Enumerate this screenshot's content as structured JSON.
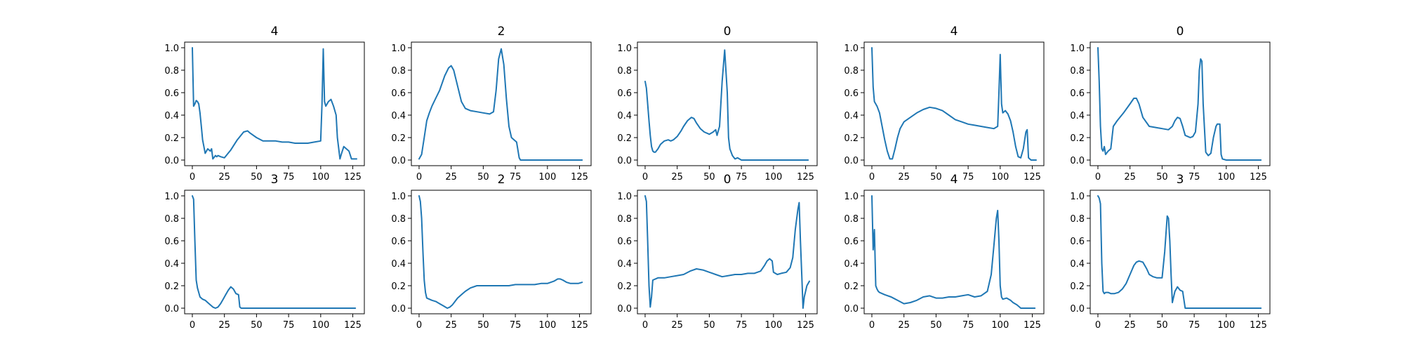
{
  "chart_data": [
    {
      "type": "line",
      "title": "4",
      "xlim": [
        -6,
        134
      ],
      "ylim": [
        -0.05,
        1.05
      ],
      "xticks": [
        0,
        25,
        50,
        75,
        100,
        125
      ],
      "yticks": [
        0.0,
        0.2,
        0.4,
        0.6,
        0.8,
        1.0
      ],
      "series": [
        {
          "x": [
            0,
            1,
            2,
            3,
            4,
            5,
            6,
            7,
            8,
            10,
            12,
            14,
            15,
            16,
            18,
            19,
            20,
            22,
            25,
            30,
            35,
            40,
            43,
            45,
            50,
            55,
            60,
            65,
            70,
            75,
            80,
            85,
            90,
            95,
            100,
            101,
            102,
            103,
            104,
            106,
            108,
            110,
            112,
            113,
            115,
            116,
            118,
            120,
            122,
            124,
            128
          ],
          "y": [
            1.0,
            0.48,
            0.5,
            0.53,
            0.52,
            0.5,
            0.42,
            0.3,
            0.18,
            0.06,
            0.1,
            0.08,
            0.1,
            0.01,
            0.04,
            0.03,
            0.04,
            0.03,
            0.02,
            0.09,
            0.18,
            0.25,
            0.26,
            0.24,
            0.2,
            0.17,
            0.17,
            0.17,
            0.16,
            0.16,
            0.15,
            0.15,
            0.15,
            0.16,
            0.17,
            0.5,
            0.99,
            0.52,
            0.48,
            0.52,
            0.54,
            0.48,
            0.4,
            0.2,
            0.01,
            0.05,
            0.12,
            0.1,
            0.08,
            0.01,
            0.01
          ]
        }
      ]
    },
    {
      "type": "line",
      "title": "2",
      "xlim": [
        -6,
        134
      ],
      "ylim": [
        -0.05,
        1.05
      ],
      "xticks": [
        0,
        25,
        50,
        75,
        100,
        125
      ],
      "yticks": [
        0.0,
        0.2,
        0.4,
        0.6,
        0.8,
        1.0
      ],
      "series": [
        {
          "x": [
            0,
            2,
            4,
            6,
            8,
            10,
            13,
            16,
            20,
            23,
            25,
            27,
            30,
            33,
            36,
            40,
            45,
            50,
            55,
            58,
            60,
            62,
            64,
            66,
            68,
            70,
            72,
            74,
            76,
            78,
            79,
            80,
            100,
            127
          ],
          "y": [
            0.01,
            0.05,
            0.2,
            0.35,
            0.42,
            0.48,
            0.55,
            0.62,
            0.75,
            0.82,
            0.84,
            0.8,
            0.66,
            0.52,
            0.46,
            0.44,
            0.43,
            0.42,
            0.41,
            0.43,
            0.62,
            0.9,
            0.99,
            0.85,
            0.55,
            0.3,
            0.2,
            0.18,
            0.16,
            0.02,
            0.0,
            0.0,
            0.0,
            0.0
          ]
        }
      ]
    },
    {
      "type": "line",
      "title": "0",
      "xlim": [
        -6,
        134
      ],
      "ylim": [
        -0.05,
        1.05
      ],
      "xticks": [
        0,
        25,
        50,
        75,
        100,
        125
      ],
      "yticks": [
        0.0,
        0.2,
        0.4,
        0.6,
        0.8,
        1.0
      ],
      "series": [
        {
          "x": [
            0,
            1,
            2,
            3,
            4,
            5,
            6,
            7,
            8,
            10,
            12,
            15,
            18,
            20,
            22,
            25,
            28,
            30,
            33,
            36,
            38,
            40,
            43,
            46,
            50,
            53,
            55,
            56,
            58,
            60,
            62,
            64,
            65,
            66,
            68,
            70,
            72,
            75,
            80,
            127
          ],
          "y": [
            0.7,
            0.64,
            0.5,
            0.35,
            0.22,
            0.12,
            0.08,
            0.07,
            0.07,
            0.1,
            0.14,
            0.17,
            0.18,
            0.17,
            0.18,
            0.21,
            0.26,
            0.3,
            0.35,
            0.38,
            0.37,
            0.33,
            0.28,
            0.25,
            0.23,
            0.25,
            0.27,
            0.22,
            0.3,
            0.7,
            0.98,
            0.6,
            0.2,
            0.1,
            0.04,
            0.01,
            0.02,
            0.0,
            0.0,
            0.0
          ]
        }
      ]
    },
    {
      "type": "line",
      "title": "4",
      "xlim": [
        -6,
        134
      ],
      "ylim": [
        -0.05,
        1.05
      ],
      "xticks": [
        0,
        25,
        50,
        75,
        100,
        125
      ],
      "yticks": [
        0.0,
        0.2,
        0.4,
        0.6,
        0.8,
        1.0
      ],
      "series": [
        {
          "x": [
            0,
            1,
            2,
            4,
            6,
            8,
            10,
            12,
            14,
            16,
            18,
            20,
            22,
            25,
            30,
            35,
            40,
            45,
            50,
            55,
            60,
            65,
            70,
            75,
            80,
            85,
            90,
            95,
            98,
            99,
            100,
            101,
            102,
            104,
            106,
            108,
            110,
            112,
            114,
            116,
            118,
            120,
            121,
            122,
            124,
            128
          ],
          "y": [
            1.0,
            0.65,
            0.52,
            0.48,
            0.42,
            0.3,
            0.18,
            0.08,
            0.01,
            0.01,
            0.1,
            0.2,
            0.28,
            0.34,
            0.38,
            0.42,
            0.45,
            0.47,
            0.46,
            0.44,
            0.4,
            0.36,
            0.34,
            0.32,
            0.31,
            0.3,
            0.29,
            0.28,
            0.3,
            0.6,
            0.94,
            0.5,
            0.42,
            0.44,
            0.41,
            0.35,
            0.25,
            0.12,
            0.03,
            0.02,
            0.1,
            0.25,
            0.27,
            0.02,
            0.0,
            0.0
          ]
        }
      ]
    },
    {
      "type": "line",
      "title": "0",
      "xlim": [
        -6,
        134
      ],
      "ylim": [
        -0.05,
        1.05
      ],
      "xticks": [
        0,
        25,
        50,
        75,
        100,
        125
      ],
      "yticks": [
        0.0,
        0.2,
        0.4,
        0.6,
        0.8,
        1.0
      ],
      "series": [
        {
          "x": [
            0,
            1,
            2,
            3,
            4,
            5,
            6,
            8,
            10,
            12,
            15,
            20,
            25,
            28,
            30,
            32,
            35,
            40,
            45,
            50,
            55,
            58,
            60,
            62,
            64,
            66,
            68,
            70,
            72,
            74,
            76,
            78,
            79,
            80,
            81,
            82,
            84,
            86,
            88,
            90,
            92,
            93,
            94,
            95,
            96,
            97,
            100,
            127
          ],
          "y": [
            1.0,
            0.7,
            0.3,
            0.1,
            0.08,
            0.12,
            0.05,
            0.08,
            0.1,
            0.3,
            0.35,
            0.42,
            0.5,
            0.55,
            0.55,
            0.5,
            0.38,
            0.3,
            0.29,
            0.28,
            0.27,
            0.3,
            0.35,
            0.38,
            0.37,
            0.3,
            0.22,
            0.21,
            0.2,
            0.21,
            0.25,
            0.5,
            0.8,
            0.9,
            0.88,
            0.5,
            0.07,
            0.04,
            0.06,
            0.2,
            0.3,
            0.32,
            0.32,
            0.32,
            0.05,
            0.01,
            0.0,
            0.0
          ]
        }
      ]
    },
    {
      "type": "line",
      "title": "3",
      "xlim": [
        -6,
        134
      ],
      "ylim": [
        -0.05,
        1.05
      ],
      "xticks": [
        0,
        25,
        50,
        75,
        100,
        125
      ],
      "yticks": [
        0.0,
        0.2,
        0.4,
        0.6,
        0.8,
        1.0
      ],
      "series": [
        {
          "x": [
            0,
            1,
            2,
            3,
            4,
            5,
            6,
            8,
            10,
            12,
            14,
            16,
            18,
            20,
            22,
            24,
            26,
            28,
            30,
            32,
            34,
            36,
            37,
            38,
            40,
            60,
            80,
            100,
            127
          ],
          "y": [
            1.0,
            0.97,
            0.6,
            0.25,
            0.18,
            0.14,
            0.1,
            0.08,
            0.07,
            0.05,
            0.03,
            0.01,
            0.0,
            0.01,
            0.04,
            0.08,
            0.12,
            0.16,
            0.19,
            0.17,
            0.13,
            0.12,
            0.01,
            0.0,
            0.0,
            0.0,
            0.0,
            0.0,
            0.0
          ]
        }
      ]
    },
    {
      "type": "line",
      "title": "2",
      "xlim": [
        -6,
        134
      ],
      "ylim": [
        -0.05,
        1.05
      ],
      "xticks": [
        0,
        25,
        50,
        75,
        100,
        125
      ],
      "yticks": [
        0.0,
        0.2,
        0.4,
        0.6,
        0.8,
        1.0
      ],
      "series": [
        {
          "x": [
            0,
            1,
            2,
            3,
            4,
            5,
            6,
            8,
            10,
            13,
            16,
            19,
            22,
            24,
            26,
            28,
            30,
            33,
            36,
            40,
            45,
            50,
            55,
            60,
            65,
            70,
            75,
            80,
            85,
            90,
            95,
            100,
            105,
            108,
            110,
            112,
            115,
            118,
            120,
            124,
            127
          ],
          "y": [
            1.0,
            0.95,
            0.8,
            0.5,
            0.25,
            0.14,
            0.09,
            0.08,
            0.07,
            0.06,
            0.04,
            0.02,
            0.0,
            0.01,
            0.03,
            0.06,
            0.09,
            0.12,
            0.15,
            0.18,
            0.2,
            0.2,
            0.2,
            0.2,
            0.2,
            0.2,
            0.21,
            0.21,
            0.21,
            0.21,
            0.22,
            0.22,
            0.24,
            0.26,
            0.26,
            0.25,
            0.23,
            0.22,
            0.22,
            0.22,
            0.23
          ]
        }
      ]
    },
    {
      "type": "line",
      "title": "0",
      "xlim": [
        -6,
        134
      ],
      "ylim": [
        -0.05,
        1.05
      ],
      "xticks": [
        0,
        25,
        50,
        75,
        100,
        125
      ],
      "yticks": [
        0.0,
        0.2,
        0.4,
        0.6,
        0.8,
        1.0
      ],
      "series": [
        {
          "x": [
            0,
            1,
            2,
            3,
            4,
            5,
            6,
            8,
            10,
            15,
            20,
            25,
            30,
            35,
            40,
            45,
            50,
            55,
            60,
            65,
            70,
            75,
            80,
            85,
            90,
            93,
            95,
            97,
            99,
            100,
            103,
            106,
            110,
            113,
            115,
            117,
            119,
            120,
            121,
            122,
            123,
            124,
            126,
            128
          ],
          "y": [
            1.0,
            0.95,
            0.6,
            0.2,
            0.01,
            0.1,
            0.25,
            0.26,
            0.27,
            0.27,
            0.28,
            0.29,
            0.3,
            0.33,
            0.35,
            0.34,
            0.32,
            0.3,
            0.28,
            0.29,
            0.3,
            0.3,
            0.31,
            0.31,
            0.33,
            0.38,
            0.42,
            0.44,
            0.42,
            0.32,
            0.3,
            0.31,
            0.32,
            0.36,
            0.45,
            0.7,
            0.88,
            0.94,
            0.6,
            0.3,
            0.0,
            0.1,
            0.2,
            0.24
          ]
        }
      ]
    },
    {
      "type": "line",
      "title": "4",
      "xlim": [
        -6,
        134
      ],
      "ylim": [
        -0.05,
        1.05
      ],
      "xticks": [
        0,
        25,
        50,
        75,
        100,
        125
      ],
      "yticks": [
        0.0,
        0.2,
        0.4,
        0.6,
        0.8,
        1.0
      ],
      "series": [
        {
          "x": [
            0,
            1,
            2,
            3,
            4,
            5,
            6,
            8,
            10,
            15,
            20,
            25,
            30,
            35,
            40,
            45,
            50,
            55,
            60,
            65,
            70,
            75,
            80,
            85,
            90,
            93,
            95,
            97,
            98,
            99,
            100,
            101,
            102,
            105,
            108,
            110,
            113,
            115,
            116,
            120,
            127
          ],
          "y": [
            1.0,
            0.52,
            0.7,
            0.2,
            0.17,
            0.15,
            0.14,
            0.13,
            0.12,
            0.1,
            0.07,
            0.04,
            0.05,
            0.07,
            0.1,
            0.11,
            0.09,
            0.09,
            0.1,
            0.1,
            0.11,
            0.12,
            0.1,
            0.11,
            0.15,
            0.3,
            0.55,
            0.8,
            0.87,
            0.6,
            0.2,
            0.1,
            0.08,
            0.09,
            0.07,
            0.05,
            0.03,
            0.01,
            0.0,
            0.0,
            0.0
          ]
        }
      ]
    },
    {
      "type": "line",
      "title": "3",
      "xlim": [
        -6,
        134
      ],
      "ylim": [
        -0.05,
        1.05
      ],
      "xticks": [
        0,
        25,
        50,
        75,
        100,
        125
      ],
      "yticks": [
        0.0,
        0.2,
        0.4,
        0.6,
        0.8,
        1.0
      ],
      "series": [
        {
          "x": [
            0,
            1,
            2,
            3,
            4,
            5,
            6,
            8,
            10,
            13,
            16,
            19,
            22,
            25,
            28,
            30,
            32,
            35,
            38,
            40,
            43,
            46,
            50,
            52,
            54,
            55,
            56,
            57,
            58,
            60,
            62,
            64,
            66,
            68,
            70,
            72,
            74,
            76,
            80,
            127
          ],
          "y": [
            1.0,
            0.98,
            0.93,
            0.4,
            0.15,
            0.13,
            0.14,
            0.14,
            0.13,
            0.13,
            0.14,
            0.17,
            0.22,
            0.3,
            0.38,
            0.41,
            0.42,
            0.41,
            0.35,
            0.3,
            0.28,
            0.27,
            0.27,
            0.5,
            0.82,
            0.8,
            0.6,
            0.3,
            0.05,
            0.15,
            0.19,
            0.16,
            0.15,
            0.0,
            0.0,
            0.0,
            0.0,
            0.0,
            0.0,
            0.0
          ]
        }
      ]
    }
  ]
}
